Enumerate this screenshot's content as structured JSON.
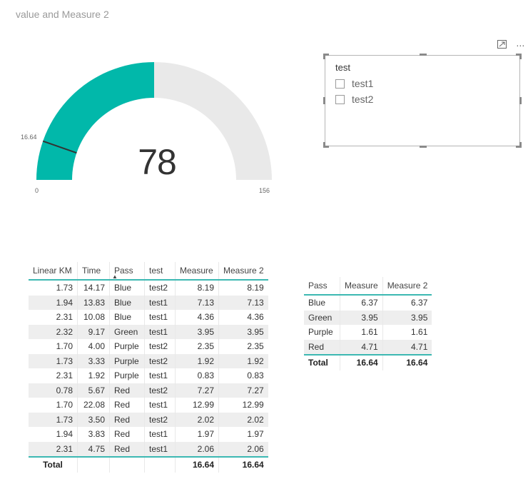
{
  "title": "value and Measure 2",
  "gauge": {
    "value": "78",
    "min_label": "0",
    "max_label": "156",
    "target_label": "16.64",
    "min": 0,
    "max": 156,
    "current": 78,
    "target": 16.64,
    "fill_color": "#01b8aa",
    "track_color": "#e9e9e9"
  },
  "slicer": {
    "title": "test",
    "items": [
      {
        "label": "test1",
        "checked": false
      },
      {
        "label": "test2",
        "checked": false
      }
    ],
    "focus_icon": "focus-mode-icon",
    "more_icon": "more-options-icon"
  },
  "table1": {
    "columns": [
      "Linear KM",
      "Time",
      "Pass",
      "test",
      "Measure",
      "Measure 2"
    ],
    "rows": [
      [
        "1.73",
        "14.17",
        "Blue",
        "test2",
        "8.19",
        "8.19"
      ],
      [
        "1.94",
        "13.83",
        "Blue",
        "test1",
        "7.13",
        "7.13"
      ],
      [
        "2.31",
        "10.08",
        "Blue",
        "test1",
        "4.36",
        "4.36"
      ],
      [
        "2.32",
        "9.17",
        "Green",
        "test1",
        "3.95",
        "3.95"
      ],
      [
        "1.70",
        "4.00",
        "Purple",
        "test2",
        "2.35",
        "2.35"
      ],
      [
        "1.73",
        "3.33",
        "Purple",
        "test2",
        "1.92",
        "1.92"
      ],
      [
        "2.31",
        "1.92",
        "Purple",
        "test1",
        "0.83",
        "0.83"
      ],
      [
        "0.78",
        "5.67",
        "Red",
        "test2",
        "7.27",
        "7.27"
      ],
      [
        "1.70",
        "22.08",
        "Red",
        "test1",
        "12.99",
        "12.99"
      ],
      [
        "1.73",
        "3.50",
        "Red",
        "test2",
        "2.02",
        "2.02"
      ],
      [
        "1.94",
        "3.83",
        "Red",
        "test1",
        "1.97",
        "1.97"
      ],
      [
        "2.31",
        "4.75",
        "Red",
        "test1",
        "2.06",
        "2.06"
      ]
    ],
    "total": [
      "Total",
      "",
      "",
      "",
      "16.64",
      "16.64"
    ]
  },
  "table2": {
    "columns": [
      "Pass",
      "Measure",
      "Measure 2"
    ],
    "rows": [
      [
        "Blue",
        "6.37",
        "6.37"
      ],
      [
        "Green",
        "3.95",
        "3.95"
      ],
      [
        "Purple",
        "1.61",
        "1.61"
      ],
      [
        "Red",
        "4.71",
        "4.71"
      ]
    ],
    "total": [
      "Total",
      "16.64",
      "16.64"
    ]
  }
}
